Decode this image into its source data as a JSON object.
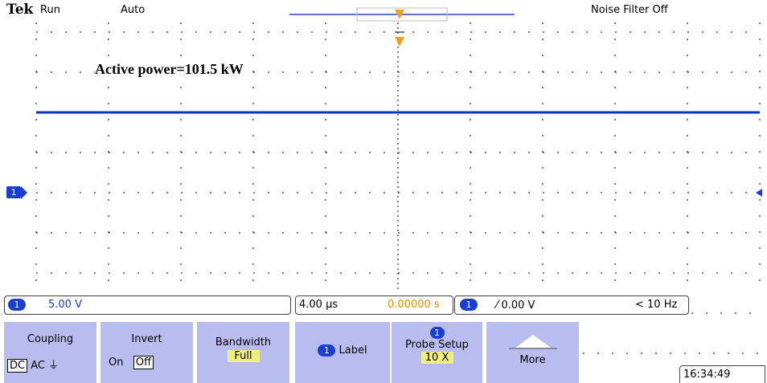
{
  "header": {
    "brand": "Tek",
    "state": "Run",
    "trigger_mode": "Auto",
    "noise_filter": "Noise Filter Off"
  },
  "annotation": "Active power=101.5 kW",
  "channel_marker": "1",
  "status": {
    "channel": "1",
    "scale": "5.00 V",
    "timebase": "4.00 µs",
    "position": "0.00000 s",
    "trigger_channel": "1",
    "trigger_level": "0.00 V",
    "frequency": "< 10 Hz"
  },
  "menu": [
    {
      "label": "Coupling",
      "options": [
        "DC",
        "AC"
      ]
    },
    {
      "label": "Invert",
      "options": [
        "On",
        "Off"
      ]
    },
    {
      "label": "Bandwidth",
      "value": "Full"
    },
    {
      "badge": "1",
      "label": "Label"
    },
    {
      "badge": "1",
      "label": "Probe Setup",
      "value": "10 X"
    },
    {
      "label": "More"
    }
  ],
  "clock": "16:34:49"
}
